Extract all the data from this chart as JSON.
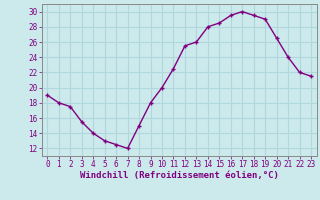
{
  "x": [
    0,
    1,
    2,
    3,
    4,
    5,
    6,
    7,
    8,
    9,
    10,
    11,
    12,
    13,
    14,
    15,
    16,
    17,
    18,
    19,
    20,
    21,
    22,
    23
  ],
  "y": [
    19,
    18,
    17.5,
    15.5,
    14,
    13,
    12.5,
    12,
    15,
    18,
    20,
    22.5,
    25.5,
    26,
    28,
    28.5,
    29.5,
    30,
    29.5,
    29,
    26.5,
    24,
    22,
    21.5
  ],
  "line_color": "#800080",
  "marker": "+",
  "marker_size": 3,
  "marker_linewidth": 1.0,
  "line_width": 1.0,
  "bg_color": "#cce9ec",
  "grid_color": "#b0d8dc",
  "spine_color": "#888888",
  "xlabel": "Windchill (Refroidissement éolien,°C)",
  "xlabel_color": "#800080",
  "tick_color": "#800080",
  "ylim": [
    11,
    31
  ],
  "yticks": [
    12,
    14,
    16,
    18,
    20,
    22,
    24,
    26,
    28,
    30
  ],
  "xticks": [
    0,
    1,
    2,
    3,
    4,
    5,
    6,
    7,
    8,
    9,
    10,
    11,
    12,
    13,
    14,
    15,
    16,
    17,
    18,
    19,
    20,
    21,
    22,
    23
  ],
  "tick_fontsize": 5.5,
  "xlabel_fontsize": 6.5
}
